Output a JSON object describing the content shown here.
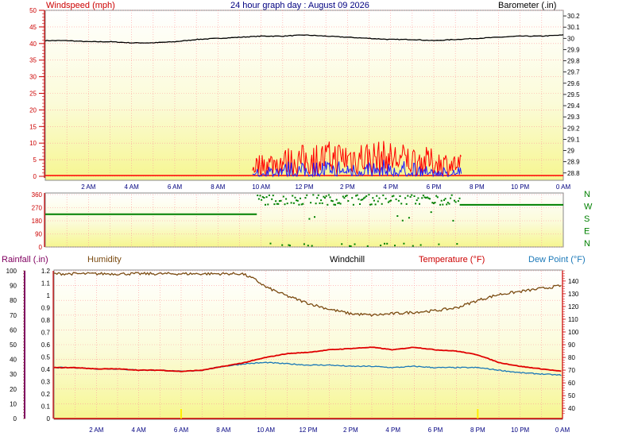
{
  "header": {
    "title": "24 hour graph day : August 09 2026",
    "wind_label": "Windspeed (mph)",
    "baro_label": "Barometer (.in)"
  },
  "lower_header": {
    "rain_label": "Rainfall (.in)",
    "humidity_label": "Humidity",
    "windchill_label": "Windchill",
    "temp_label": "Temperature (°F)",
    "dew_label": "Dew Point (°F)"
  },
  "colors": {
    "wind": "#ff0000",
    "gust": "#2020ff",
    "barometer": "#000000",
    "direction": "#008000",
    "humidity": "#7a4a10",
    "temperature": "#e00000",
    "dewpoint": "#1a78b8",
    "axis_red": "#cc0000",
    "axis_purple": "#800060"
  },
  "chart_data": [
    {
      "type": "line",
      "name": "wind-baro",
      "x_ticks": [
        "2 AM",
        "4 AM",
        "6 AM",
        "8 AM",
        "10 AM",
        "12 PM",
        "2 PM",
        "4 PM",
        "6 PM",
        "8 PM",
        "10 PM",
        "0 AM"
      ],
      "y_left": {
        "label": "Windspeed (mph)",
        "range": [
          0,
          50
        ],
        "ticks": [
          0,
          5,
          10,
          15,
          20,
          25,
          30,
          35,
          40,
          45,
          50
        ]
      },
      "y_right": {
        "label": "Barometer (.in)",
        "range": [
          28.77,
          30.25
        ],
        "ticks": [
          28.8,
          28.9,
          29,
          29.1,
          29.2,
          29.3,
          29.4,
          29.5,
          29.6,
          29.7,
          29.8,
          29.9,
          30,
          30.1,
          30.2
        ]
      },
      "series": [
        {
          "values_hour": [
            0,
            1,
            2,
            3,
            4,
            5,
            6,
            7,
            8,
            9,
            10,
            11,
            12,
            13,
            14,
            15,
            16,
            17,
            18,
            19,
            20,
            21,
            22,
            23,
            24
          ],
          "values": [
            29.98,
            29.98,
            29.97,
            29.97,
            29.96,
            29.96,
            29.97,
            29.99,
            30.0,
            30.01,
            30.02,
            30.02,
            30.03,
            30.02,
            30.01,
            30.0,
            29.99,
            29.99,
            29.98,
            29.99,
            30.0,
            30.01,
            30.02,
            30.02,
            30.03
          ]
        }
      ],
      "wind_active_hours": [
        9.6,
        19.3
      ]
    },
    {
      "type": "scatter",
      "name": "wind-direction",
      "y_range": [
        0,
        360
      ],
      "y_ticks": [
        0,
        90,
        180,
        270,
        360
      ],
      "compass": [
        "N",
        "W",
        "S",
        "E",
        "N"
      ],
      "steady_before": {
        "hours": [
          0,
          9.8
        ],
        "value": 225
      },
      "steady_after": {
        "hours": [
          19.2,
          24
        ],
        "value": 290
      }
    },
    {
      "type": "line",
      "name": "temp-humidity",
      "x_ticks": [
        "2 AM",
        "4 AM",
        "6 AM",
        "8 AM",
        "10 AM",
        "12 PM",
        "2 PM",
        "4 PM",
        "6 PM",
        "8 PM",
        "10 PM",
        "0 AM"
      ],
      "y_rain": {
        "range": [
          0,
          1.2
        ],
        "ticks": [
          0,
          0.1,
          0.2,
          0.3,
          0.4,
          0.5,
          0.6,
          0.7,
          0.8,
          0.9,
          1,
          1.1,
          1.2
        ]
      },
      "y_humidity": {
        "range": [
          0,
          100
        ],
        "ticks": [
          0,
          10,
          20,
          30,
          40,
          50,
          60,
          70,
          80,
          90,
          100
        ]
      },
      "y_temp": {
        "range": [
          32,
          148
        ],
        "ticks": [
          40,
          50,
          60,
          70,
          80,
          90,
          100,
          110,
          120,
          130,
          140
        ]
      },
      "series": [
        {
          "values_hour": [
            0,
            1,
            2,
            3,
            4,
            5,
            6,
            7,
            8,
            8.9,
            9.5,
            10,
            11,
            12,
            13,
            14,
            15,
            16,
            17,
            18,
            19,
            20,
            21,
            22,
            23,
            24
          ],
          "values": [
            98,
            98,
            98,
            98,
            98,
            98,
            98,
            98,
            98,
            98,
            94,
            89,
            83,
            78,
            74,
            71,
            70,
            71,
            72,
            73,
            75,
            80,
            84,
            86,
            88,
            90
          ]
        },
        {
          "values_hour": [
            0,
            1,
            2,
            3,
            4,
            5,
            6,
            7,
            8,
            9,
            10,
            11,
            12,
            13,
            14,
            15,
            16,
            17,
            18,
            19,
            20,
            21,
            22,
            23,
            24
          ],
          "values": [
            72,
            72,
            71,
            71,
            70,
            70,
            69,
            70,
            73,
            76,
            80,
            83,
            84,
            86,
            87,
            88,
            86,
            88,
            86,
            85,
            82,
            76,
            73,
            71,
            69
          ]
        },
        {
          "values_hour": [
            0,
            1,
            2,
            3,
            4,
            5,
            6,
            7,
            8,
            9,
            10,
            11,
            12,
            13,
            14,
            15,
            16,
            17,
            18,
            19,
            20,
            21,
            22,
            23,
            24
          ],
          "values": [
            72,
            72,
            71,
            71,
            70,
            70,
            69,
            70,
            73,
            75,
            76,
            75,
            74,
            74,
            73,
            73,
            72,
            73,
            72,
            72,
            72,
            70,
            68,
            67,
            66
          ]
        }
      ]
    }
  ]
}
